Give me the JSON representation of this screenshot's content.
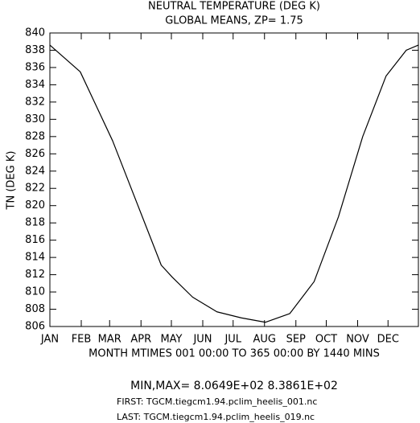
{
  "chart_data": {
    "type": "line",
    "title": "NEUTRAL TEMPERATURE (DEG K)",
    "subtitle": "GLOBAL MEANS, ZP=  1.75",
    "x_label": "MONTH MTIMES 001 00:00 TO 365 00:00 BY 1440 MINS",
    "y_label": "TN (DEG K)",
    "notes": [
      "MIN,MAX=  8.0649E+02  8.3861E+02",
      "FIRST: TGCM.tiegcm1.94.pclim_heelis_001.nc",
      "LAST:  TGCM.tiegcm1.94.pclim_heelis_019.nc"
    ],
    "x": [
      1,
      31,
      63,
      91,
      111,
      122,
      142,
      166,
      190,
      214,
      238,
      262,
      286,
      310,
      333,
      353,
      365
    ],
    "series": [
      {
        "name": "TN",
        "color": "#000000",
        "values": [
          838.6,
          835.5,
          827.5,
          819.1,
          813.1,
          811.7,
          809.4,
          807.7,
          807.0,
          806.49,
          807.5,
          811.2,
          818.7,
          828.0,
          835.0,
          838.0,
          838.6
        ]
      }
    ],
    "xlim": [
      1,
      365
    ],
    "xticks": [
      {
        "value": 1,
        "label": "JAN"
      },
      {
        "value": 32,
        "label": "FEB"
      },
      {
        "value": 60,
        "label": "MAR"
      },
      {
        "value": 91,
        "label": "APR"
      },
      {
        "value": 121,
        "label": "MAY"
      },
      {
        "value": 152,
        "label": "JUN"
      },
      {
        "value": 182,
        "label": "JUL"
      },
      {
        "value": 213,
        "label": "AUG"
      },
      {
        "value": 244,
        "label": "SEP"
      },
      {
        "value": 274,
        "label": "OCT"
      },
      {
        "value": 305,
        "label": "NOV"
      },
      {
        "value": 335,
        "label": "DEC"
      }
    ],
    "ylim": [
      806,
      840
    ],
    "yticks": [
      806,
      808,
      810,
      812,
      814,
      816,
      818,
      820,
      822,
      824,
      826,
      828,
      830,
      832,
      834,
      836,
      838,
      840
    ],
    "grid": false
  }
}
